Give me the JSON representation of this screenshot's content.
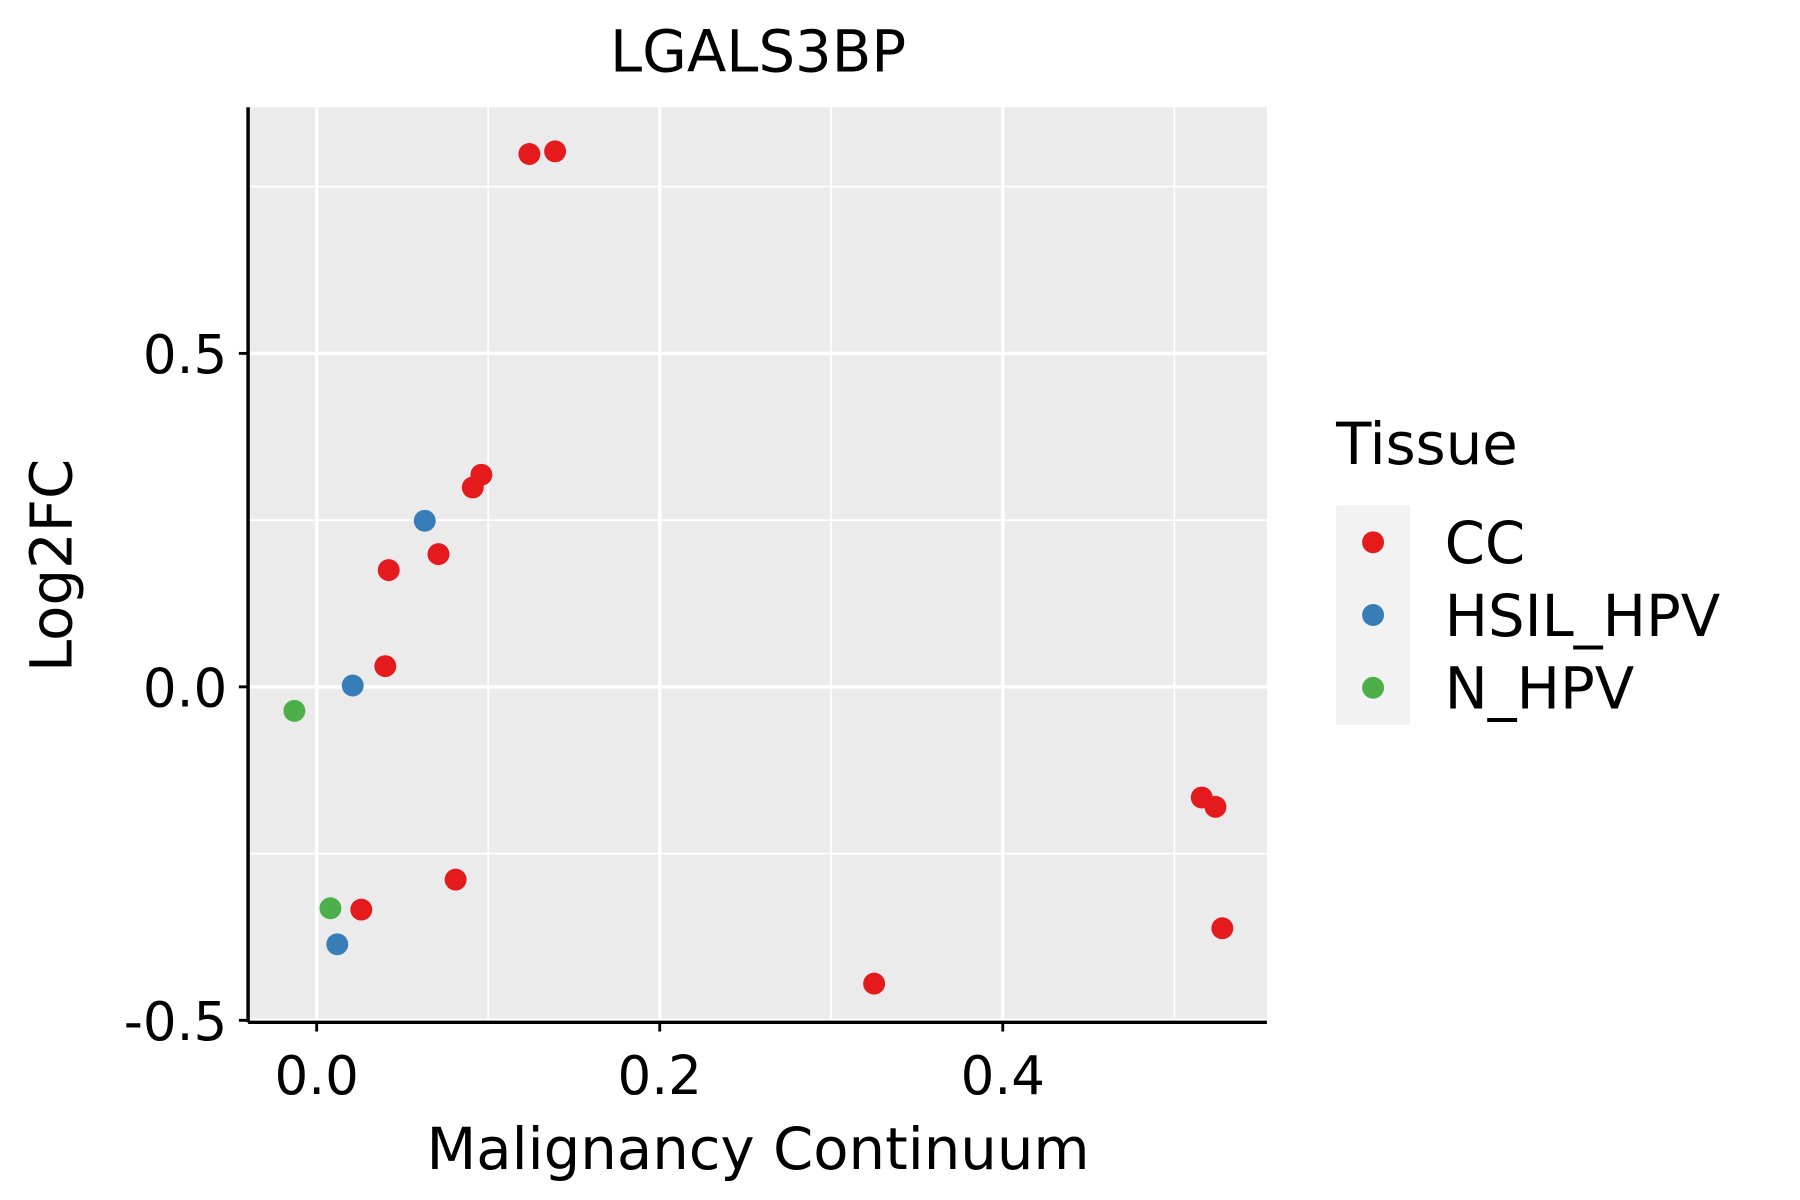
{
  "chart_data": {
    "type": "scatter",
    "title": "LGALS3BP",
    "xlabel": "Malignancy Continuum",
    "ylabel": "Log2FC",
    "xlim": [
      -0.04,
      0.554
    ],
    "ylim": [
      -0.503,
      0.869
    ],
    "xticks": [
      0.0,
      0.2,
      0.4
    ],
    "xtick_labels": [
      "0.0",
      "0.2",
      "0.4"
    ],
    "yticks": [
      -0.5,
      0.0,
      0.5
    ],
    "ytick_labels": [
      "-0.5",
      "0.0",
      "0.5"
    ],
    "x_minor": [
      0.1,
      0.3,
      0.5
    ],
    "y_minor": [
      -0.25,
      0.25,
      0.75
    ],
    "grid": true,
    "legend": {
      "title": "Tissue",
      "placement": "right",
      "entries": [
        {
          "label": "CC",
          "color": "#E41A1C"
        },
        {
          "label": "HSIL_HPV",
          "color": "#377EB8"
        },
        {
          "label": "N_HPV",
          "color": "#4DAF4A"
        }
      ]
    },
    "series": [
      {
        "name": "CC",
        "color": "#E41A1C",
        "points": [
          [
            0.124,
            0.799
          ],
          [
            0.139,
            0.803
          ],
          [
            0.096,
            0.318
          ],
          [
            0.091,
            0.299
          ],
          [
            0.071,
            0.199
          ],
          [
            0.042,
            0.175
          ],
          [
            0.04,
            0.031
          ],
          [
            0.516,
            -0.166
          ],
          [
            0.524,
            -0.18
          ],
          [
            0.081,
            -0.289
          ],
          [
            0.026,
            -0.334
          ],
          [
            0.528,
            -0.362
          ],
          [
            0.325,
            -0.445
          ]
        ]
      },
      {
        "name": "HSIL_HPV",
        "color": "#377EB8",
        "points": [
          [
            0.063,
            0.249
          ],
          [
            0.021,
            0.002
          ],
          [
            0.012,
            -0.386
          ]
        ]
      },
      {
        "name": "N_HPV",
        "color": "#4DAF4A",
        "points": [
          [
            -0.013,
            -0.036
          ],
          [
            0.008,
            -0.332
          ]
        ]
      }
    ]
  }
}
